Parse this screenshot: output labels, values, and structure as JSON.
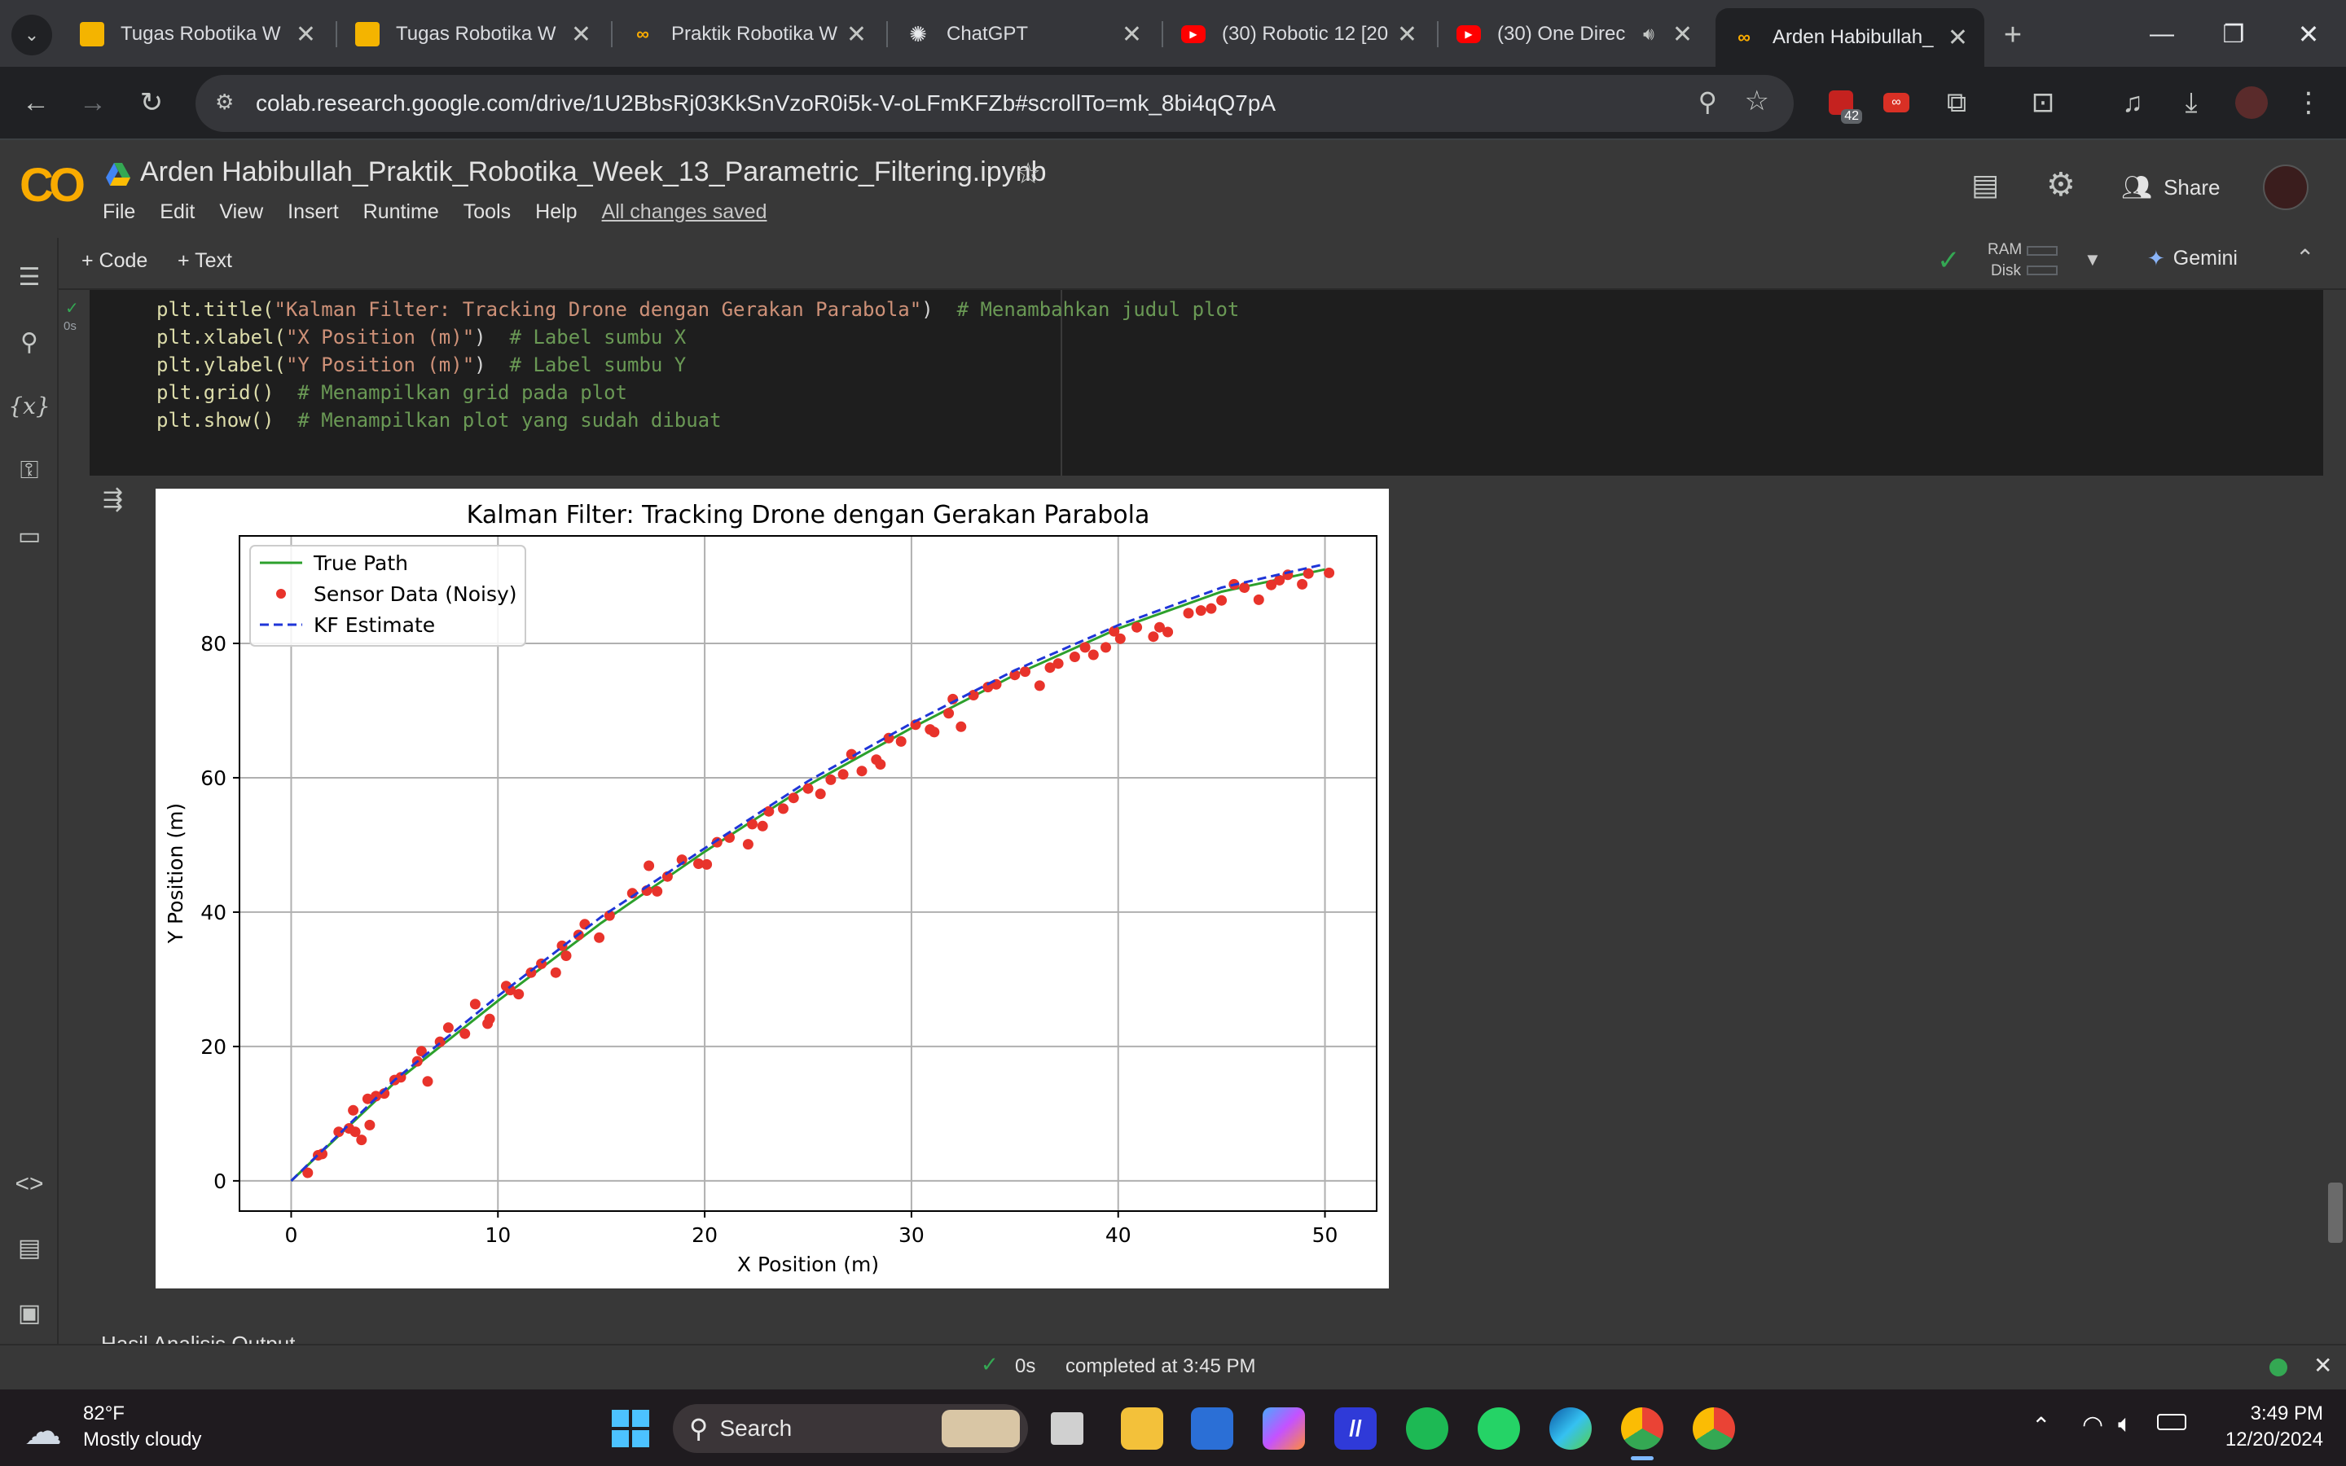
{
  "browser": {
    "tabs": [
      {
        "title": "Tugas Robotika W",
        "icon": "slides-icon"
      },
      {
        "title": "Tugas Robotika W",
        "icon": "slides-icon"
      },
      {
        "title": "Praktik Robotika W",
        "icon": "colab-icon"
      },
      {
        "title": "ChatGPT",
        "icon": "chatgpt-icon"
      },
      {
        "title": "(30) Robotic 12 [20",
        "icon": "youtube-icon"
      },
      {
        "title": "(30) One Direc",
        "icon": "youtube-icon"
      },
      {
        "title": "Arden Habibullah_",
        "icon": "colab-icon"
      }
    ],
    "url": "colab.research.google.com/drive/1U2BbsRj03KkSnVzoR0i5k-V-oLFmKFZb#scrollTo=mk_8bi4qQ7pA",
    "extension_badge": "42"
  },
  "colab": {
    "logo": "CO",
    "notebook_title": "Arden Habibullah_Praktik_Robotika_Week_13_Parametric_Filtering.ipynb",
    "menu": [
      "File",
      "Edit",
      "View",
      "Insert",
      "Runtime",
      "Tools",
      "Help"
    ],
    "saved_status": "All changes saved",
    "share_label": "Share",
    "add_code": "+ Code",
    "add_text": "+ Text",
    "ram_label": "RAM",
    "disk_label": "Disk",
    "gemini_label": "Gemini",
    "cell_time": "0s",
    "status_time": "0s",
    "status_text": "completed at 3:45 PM",
    "bottom_peek": "Hasil Analisis Output"
  },
  "code": {
    "l1_fn": "plt.title(",
    "l1_str": "\"Kalman Filter: Tracking Drone dengan Gerakan Parabola\"",
    "l1_close": ")",
    "l1_cm": "# Menambahkan judul plot",
    "l2_fn": "plt.xlabel(",
    "l2_str": "\"X Position (m)\"",
    "l2_close": ")",
    "l2_cm": "# Label sumbu X",
    "l3_fn": "plt.ylabel(",
    "l3_str": "\"Y Position (m)\"",
    "l3_close": ")",
    "l3_cm": "# Label sumbu Y",
    "l4_fn": "plt.grid()",
    "l4_cm": "# Menampilkan grid pada plot",
    "l5_fn": "plt.show()",
    "l5_cm": "# Menampilkan plot yang sudah dibuat"
  },
  "chart_data": {
    "type": "line",
    "title": "Kalman Filter: Tracking Drone dengan Gerakan Parabola",
    "xlabel": "X Position (m)",
    "ylabel": "Y Position (m)",
    "xlim": [
      -2.5,
      52.5
    ],
    "ylim": [
      -4.5,
      96
    ],
    "xticks": [
      0,
      10,
      20,
      30,
      40,
      50
    ],
    "yticks": [
      0,
      20,
      40,
      60,
      80
    ],
    "grid": true,
    "legend_position": "top-left",
    "legend": [
      "True Path",
      "Sensor Data (Noisy)",
      "KF Estimate"
    ],
    "series": [
      {
        "name": "True Path",
        "kind": "line",
        "color": "#2ca02c",
        "x": [
          0,
          5,
          10,
          15,
          20,
          25,
          30,
          35,
          40,
          45,
          50
        ],
        "y": [
          0,
          14.6,
          26.8,
          38.4,
          49.0,
          58.9,
          67.4,
          75.3,
          82.2,
          87.7,
          91.0
        ]
      },
      {
        "name": "Sensor Data (Noisy)",
        "kind": "scatter",
        "color": "#e8332b",
        "x": [
          0.8,
          1.3,
          1.5,
          2.3,
          2.8,
          3.0,
          3.1,
          3.4,
          3.7,
          3.8,
          4.1,
          4.5,
          5.0,
          5.3,
          6.1,
          6.3,
          6.6,
          7.2,
          7.6,
          8.4,
          8.9,
          9.5,
          9.6,
          10.4,
          10.6,
          11.0,
          11.6,
          12.1,
          12.8,
          13.1,
          13.3,
          13.9,
          14.2,
          14.9,
          15.4,
          16.5,
          17.2,
          17.3,
          17.7,
          18.2,
          18.9,
          19.7,
          20.1,
          20.6,
          21.2,
          22.1,
          22.3,
          22.8,
          23.1,
          23.8,
          24.3,
          25.0,
          25.6,
          26.1,
          26.7,
          27.1,
          27.6,
          28.3,
          28.5,
          28.9,
          29.5,
          30.2,
          30.9,
          31.1,
          31.8,
          32.0,
          32.4,
          33.0,
          33.7,
          34.1,
          35.0,
          35.5,
          36.2,
          36.7,
          37.1,
          37.9,
          38.4,
          38.8,
          39.4,
          39.8,
          40.1,
          40.9,
          41.7,
          42.0,
          42.4,
          43.4,
          44.0,
          44.5,
          45.0,
          45.6,
          46.1,
          46.8,
          47.4,
          47.8,
          48.2,
          48.9,
          49.2,
          50.2
        ],
        "y": [
          1.2,
          3.8,
          4.0,
          7.3,
          7.8,
          10.5,
          7.3,
          6.1,
          12.2,
          8.3,
          12.6,
          13.0,
          15.0,
          15.4,
          17.8,
          19.3,
          14.8,
          20.7,
          22.8,
          21.9,
          26.3,
          23.4,
          24.1,
          29.0,
          28.4,
          27.8,
          31.0,
          32.3,
          31.0,
          35.0,
          33.5,
          36.6,
          38.2,
          36.2,
          39.5,
          42.8,
          43.2,
          46.9,
          43.1,
          45.3,
          47.8,
          47.2,
          47.1,
          50.4,
          51.1,
          50.1,
          53.1,
          52.8,
          55.0,
          55.4,
          57.0,
          58.4,
          57.6,
          59.7,
          60.5,
          63.5,
          61.0,
          62.7,
          62.0,
          65.9,
          65.4,
          67.9,
          67.2,
          66.8,
          69.6,
          71.7,
          67.6,
          72.3,
          73.5,
          73.9,
          75.3,
          75.8,
          73.7,
          76.4,
          77.0,
          78.0,
          79.4,
          78.3,
          79.4,
          81.8,
          80.7,
          82.4,
          81.0,
          82.4,
          81.7,
          84.5,
          84.9,
          85.2,
          86.4,
          88.8,
          88.3,
          86.5,
          88.7,
          89.4,
          90.2,
          88.8,
          90.4,
          90.5
        ]
      },
      {
        "name": "KF Estimate",
        "kind": "line",
        "color": "#1f35d8",
        "x": [
          0,
          5,
          10,
          15,
          20,
          25,
          30,
          35,
          40,
          45,
          50
        ],
        "y": [
          0,
          15.0,
          27.5,
          39.3,
          49.5,
          59.5,
          68.1,
          76.0,
          82.7,
          88.3,
          91.8
        ]
      }
    ]
  },
  "system": {
    "weather_temp": "82°F",
    "weather_desc": "Mostly cloudy",
    "search_label": "Search",
    "clock_time": "3:49 PM",
    "clock_date": "12/20/2024"
  }
}
